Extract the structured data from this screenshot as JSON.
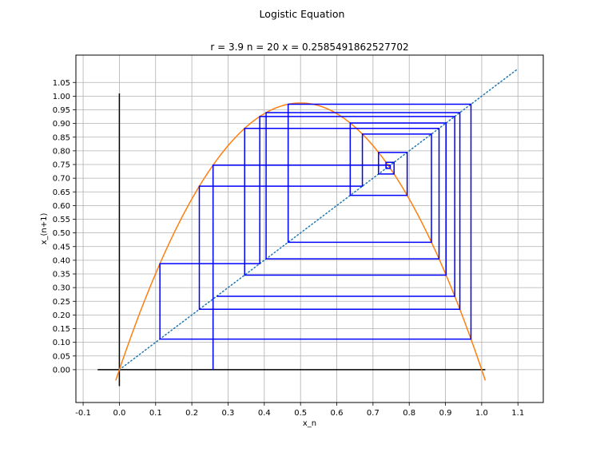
{
  "chart_data": {
    "type": "line",
    "suptitle": "Logistic Equation",
    "title": "r = 3.9 n = 20 x = 0.2585491862527702",
    "xlabel": "x_n",
    "ylabel": "x_(n+1)",
    "r": 3.9,
    "n": 20,
    "x0": 0.2585491862527702,
    "xlim": [
      -0.12,
      1.17
    ],
    "ylim": [
      -0.12,
      1.15
    ],
    "xticks": [
      -0.1,
      0.0,
      0.1,
      0.2,
      0.3,
      0.4,
      0.5,
      0.6,
      0.7,
      0.8,
      0.9,
      1.0,
      1.1
    ],
    "xtick_labels": [
      "-0.1",
      "0.0",
      "0.1",
      "0.2",
      "0.3",
      "0.4",
      "0.5",
      "0.6",
      "0.7",
      "0.8",
      "0.9",
      "1.0",
      "1.1"
    ],
    "yticks": [
      0.0,
      0.05,
      0.1,
      0.15,
      0.2,
      0.25,
      0.3,
      0.35,
      0.4,
      0.45,
      0.5,
      0.55,
      0.6,
      0.65,
      0.7,
      0.75,
      0.8,
      0.85,
      0.9,
      0.95,
      1.0,
      1.05
    ],
    "ytick_labels": [
      "0.00",
      "0.05",
      "0.10",
      "0.15",
      "0.20",
      "0.25",
      "0.30",
      "0.35",
      "0.40",
      "0.45",
      "0.50",
      "0.55",
      "0.60",
      "0.65",
      "0.70",
      "0.75",
      "0.80",
      "0.85",
      "0.90",
      "0.95",
      "1.00",
      "1.05"
    ],
    "grid": true,
    "parabola_x_range": [
      -0.01,
      1.01
    ],
    "diagonal": {
      "x": [
        0.0,
        1.1
      ],
      "y": [
        0.0,
        1.1
      ]
    },
    "horizontal_axis_line": {
      "x": [
        -0.06,
        1.01
      ],
      "y": 0.0
    },
    "vertical_axis_line": {
      "x": 0.0,
      "y": [
        -0.06,
        1.01
      ]
    },
    "colors": {
      "parabola": "#ff7f0e",
      "diagonal": "#1f77b4",
      "cobweb": "#0000ff",
      "axis_lines": "#000000",
      "grid": "#b0b0b0"
    }
  }
}
